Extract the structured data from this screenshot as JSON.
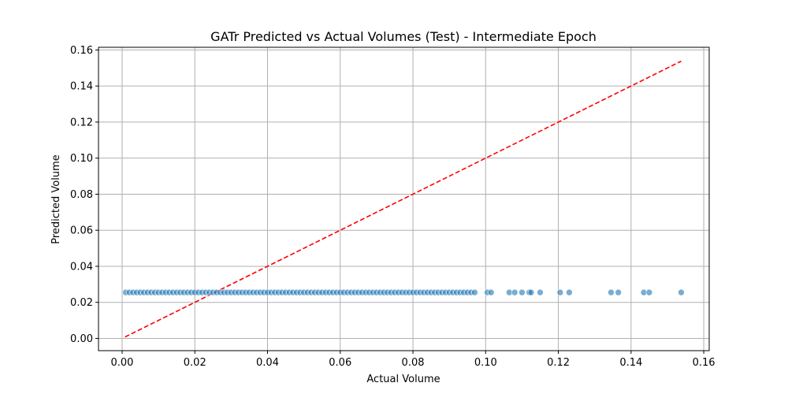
{
  "chart_data": {
    "type": "scatter",
    "title": "GATr Predicted vs Actual Volumes (Test) - Intermediate Epoch",
    "xlabel": "Actual Volume",
    "ylabel": "Predicted Volume",
    "xlim": [
      -0.0065,
      0.1615
    ],
    "ylim": [
      -0.0068,
      0.1615
    ],
    "x_ticks": [
      0.0,
      0.02,
      0.04,
      0.06,
      0.08,
      0.1,
      0.12,
      0.14,
      0.16
    ],
    "x_tick_labels": [
      "0.00",
      "0.02",
      "0.04",
      "0.06",
      "0.08",
      "0.10",
      "0.12",
      "0.14",
      "0.16"
    ],
    "y_ticks": [
      0.0,
      0.02,
      0.04,
      0.06,
      0.08,
      0.1,
      0.12,
      0.14,
      0.16
    ],
    "y_tick_labels": [
      "0.00",
      "0.02",
      "0.04",
      "0.06",
      "0.08",
      "0.10",
      "0.12",
      "0.14",
      "0.16"
    ],
    "grid": true,
    "point_color": "#1f77b4",
    "line_color": "#ff0000",
    "reference_line": {
      "x": [
        0.0008,
        0.1538
      ],
      "y": [
        0.0008,
        0.1538
      ],
      "style": "dashed"
    },
    "series": [
      {
        "x": [
          0.001,
          0.002,
          0.003,
          0.004,
          0.005,
          0.006,
          0.007,
          0.008,
          0.009,
          0.01,
          0.011,
          0.012,
          0.013,
          0.014,
          0.015,
          0.016,
          0.017,
          0.018,
          0.019,
          0.02,
          0.021,
          0.022,
          0.023,
          0.024,
          0.025,
          0.026,
          0.027,
          0.028,
          0.029,
          0.03,
          0.031,
          0.032,
          0.033,
          0.034,
          0.035,
          0.036,
          0.037,
          0.038,
          0.039,
          0.04,
          0.041,
          0.042,
          0.043,
          0.044,
          0.045,
          0.046,
          0.047,
          0.048,
          0.049,
          0.05,
          0.051,
          0.052,
          0.053,
          0.054,
          0.055,
          0.056,
          0.057,
          0.058,
          0.059,
          0.06,
          0.061,
          0.062,
          0.063,
          0.064,
          0.065,
          0.066,
          0.067,
          0.068,
          0.069,
          0.07,
          0.071,
          0.072,
          0.073,
          0.074,
          0.075,
          0.076,
          0.077,
          0.078,
          0.079,
          0.08,
          0.081,
          0.082,
          0.083,
          0.084,
          0.085,
          0.086,
          0.087,
          0.088,
          0.089,
          0.09,
          0.091,
          0.092,
          0.093,
          0.094,
          0.095,
          0.096,
          0.097,
          0.1005,
          0.1015,
          0.1065,
          0.108,
          0.11,
          0.112,
          0.1125,
          0.115,
          0.1205,
          0.123,
          0.1345,
          0.1365,
          0.1435,
          0.145,
          0.1538
        ],
        "y": [
          0.0255,
          0.0255,
          0.0255,
          0.0255,
          0.0255,
          0.0255,
          0.0255,
          0.0255,
          0.0255,
          0.0255,
          0.0255,
          0.0255,
          0.0255,
          0.0255,
          0.0255,
          0.0255,
          0.0255,
          0.0255,
          0.0255,
          0.0255,
          0.0255,
          0.0255,
          0.0255,
          0.0255,
          0.0255,
          0.0255,
          0.0255,
          0.0255,
          0.0255,
          0.0255,
          0.0255,
          0.0255,
          0.0255,
          0.0255,
          0.0255,
          0.0255,
          0.0255,
          0.0255,
          0.0255,
          0.0255,
          0.0255,
          0.0255,
          0.0255,
          0.0255,
          0.0255,
          0.0255,
          0.0255,
          0.0255,
          0.0255,
          0.0255,
          0.0255,
          0.0255,
          0.0255,
          0.0255,
          0.0255,
          0.0255,
          0.0255,
          0.0255,
          0.0255,
          0.0255,
          0.0255,
          0.0255,
          0.0255,
          0.0255,
          0.0255,
          0.0255,
          0.0255,
          0.0255,
          0.0255,
          0.0255,
          0.0255,
          0.0255,
          0.0255,
          0.0255,
          0.0255,
          0.0255,
          0.0255,
          0.0255,
          0.0255,
          0.0255,
          0.0255,
          0.0255,
          0.0255,
          0.0255,
          0.0255,
          0.0255,
          0.0255,
          0.0255,
          0.0255,
          0.0255,
          0.0255,
          0.0255,
          0.0255,
          0.0255,
          0.0255,
          0.0255,
          0.0255,
          0.0255,
          0.0255,
          0.0255,
          0.0255,
          0.0255,
          0.0255,
          0.0255,
          0.0255,
          0.0255,
          0.0255,
          0.0255,
          0.0255,
          0.0255,
          0.0255,
          0.0255
        ]
      }
    ]
  }
}
